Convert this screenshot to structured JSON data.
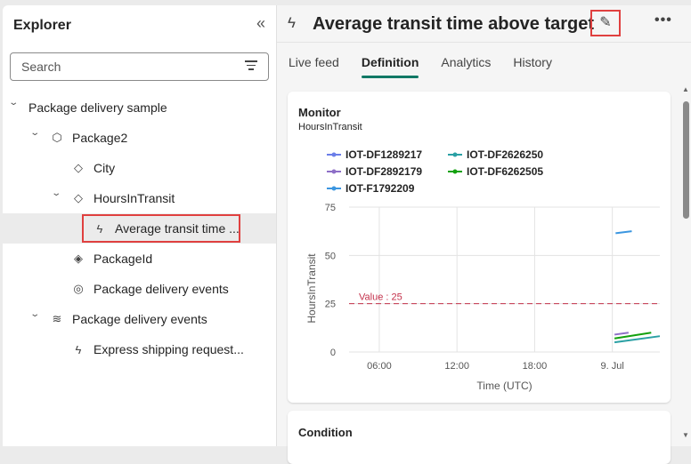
{
  "explorer": {
    "title": "Explorer",
    "collapse_icon": "double-chevron-left-icon",
    "search_placeholder": "Search",
    "filter_icon": "filter-icon",
    "tree": [
      {
        "label": "Package delivery sample",
        "level": 0,
        "expanded": true,
        "icon": ""
      },
      {
        "label": "Package2",
        "level": 1,
        "expanded": true,
        "icon": "cube-icon"
      },
      {
        "label": "City",
        "level": 2,
        "icon": "tag-icon"
      },
      {
        "label": "HoursInTransit",
        "level": 2,
        "expanded": true,
        "icon": "tag-icon"
      },
      {
        "label": "Average transit time ...",
        "level": 3,
        "icon": "lightning-icon",
        "selected": true
      },
      {
        "label": "PackageId",
        "level": 2,
        "icon": "tags-icon"
      },
      {
        "label": "Package delivery events",
        "level": 2,
        "icon": "stream-icon"
      },
      {
        "label": "Package delivery events",
        "level": 1,
        "expanded": true,
        "icon": "eventstream-icon"
      },
      {
        "label": "Express shipping request...",
        "level": 2,
        "icon": "lightning-icon"
      }
    ]
  },
  "header": {
    "title": "Average transit time above target",
    "edit_icon": "pencil-icon",
    "more_icon": "more-icon"
  },
  "tabs": [
    {
      "label": "Live feed"
    },
    {
      "label": "Definition",
      "active": true
    },
    {
      "label": "Analytics"
    },
    {
      "label": "History"
    }
  ],
  "monitor": {
    "title": "Monitor",
    "subtitle": "HoursInTransit"
  },
  "condition": {
    "title": "Condition"
  },
  "chart_data": {
    "type": "line",
    "xlabel": "Time (UTC)",
    "ylabel": "HoursInTransit",
    "x_ticks": [
      "06:00",
      "12:00",
      "18:00",
      "9. Jul"
    ],
    "xlim": [
      "8 Jul 03:40",
      "9 Jul 03:40"
    ],
    "ylim": [
      0,
      75
    ],
    "y_ticks": [
      0,
      25,
      50,
      75
    ],
    "grid": true,
    "legend": "top",
    "threshold": {
      "label": "Value : 25",
      "value": 25,
      "color": "#c4314b"
    },
    "series": [
      {
        "name": "IOT-DF1289217",
        "color": "#6b7ee8",
        "points": []
      },
      {
        "name": "IOT-DF2626250",
        "color": "#2aa0a4",
        "points": [
          [
            "9 Jul 00:10",
            5
          ],
          [
            "9 Jul 03:40",
            8.2
          ]
        ]
      },
      {
        "name": "IOT-DF2892179",
        "color": "#8e6fc7",
        "points": [
          [
            "9 Jul 00:10",
            9
          ],
          [
            "9 Jul 01:15",
            10
          ]
        ]
      },
      {
        "name": "IOT-DF6262505",
        "color": "#13a10e",
        "points": [
          [
            "9 Jul 00:10",
            7
          ],
          [
            "9 Jul 03:00",
            10
          ]
        ]
      },
      {
        "name": "IOT-F1792209",
        "color": "#3b96e0",
        "points": [
          [
            "9 Jul 00:15",
            61.5
          ],
          [
            "9 Jul 01:30",
            62.5
          ]
        ]
      }
    ]
  }
}
